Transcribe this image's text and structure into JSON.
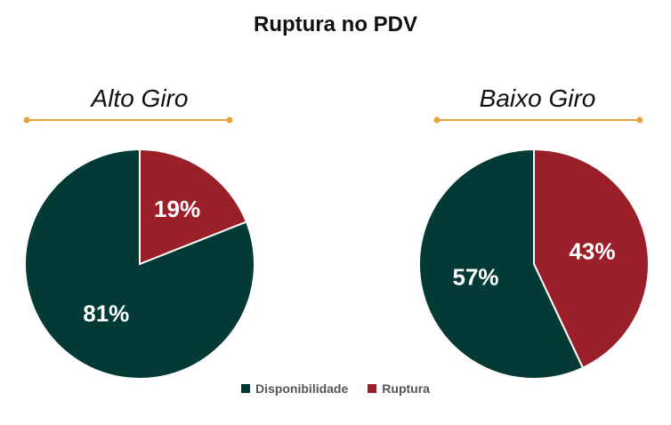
{
  "chart_data": {
    "type": "pie",
    "title": "Ruptura no PDV",
    "legend": {
      "position": "bottom",
      "entries": [
        "Disponibilidade",
        "Ruptura"
      ]
    },
    "colors": {
      "Disponibilidade": "#033a35",
      "Ruptura": "#9b1f28",
      "divider": "#e8a33d"
    },
    "pies": [
      {
        "subtitle": "Alto Giro",
        "slices": [
          {
            "category": "Ruptura",
            "value": 19,
            "label": "19%"
          },
          {
            "category": "Disponibilidade",
            "value": 81,
            "label": "81%"
          }
        ]
      },
      {
        "subtitle": "Baixo Giro",
        "slices": [
          {
            "category": "Ruptura",
            "value": 43,
            "label": "43%"
          },
          {
            "category": "Disponibilidade",
            "value": 57,
            "label": "57%"
          }
        ]
      }
    ]
  }
}
